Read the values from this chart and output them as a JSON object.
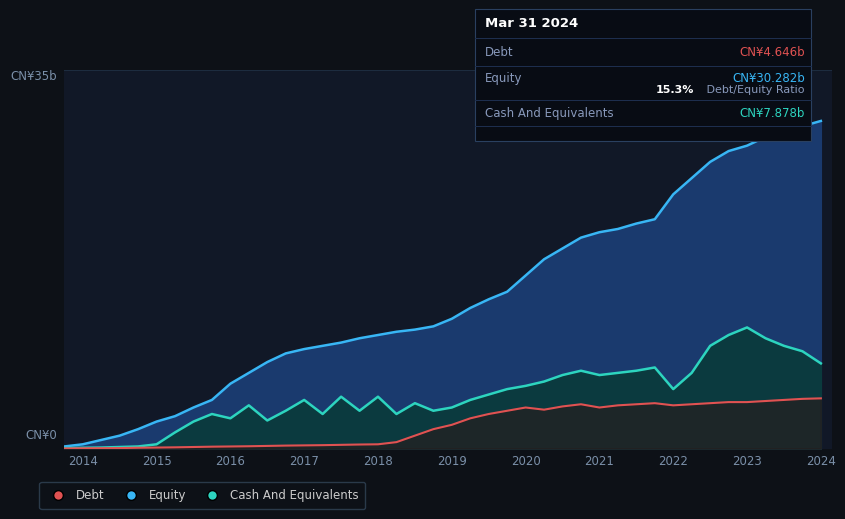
{
  "background_color": "#0d1117",
  "plot_bg_color": "#111827",
  "ylabel_top": "CN¥35b",
  "ylabel_bottom": "CN¥0",
  "x_ticks": [
    2014,
    2015,
    2016,
    2017,
    2018,
    2019,
    2020,
    2021,
    2022,
    2023,
    2024
  ],
  "ylim": [
    0,
    35
  ],
  "debt_color": "#e05252",
  "equity_color": "#38b6f5",
  "cash_color": "#2dd4bf",
  "equity_fill_color": "#1a3a6e",
  "cash_fill_color": "#0a3a3a",
  "debt_fill_color": "#2a1a1a",
  "grid_color": "#1e2d40",
  "tooltip": {
    "title": "Mar 31 2024",
    "debt_label": "Debt",
    "debt_value": "CN¥4.646b",
    "equity_label": "Equity",
    "equity_value": "CN¥30.282b",
    "ratio_bold": "15.3%",
    "ratio_text": " Debt/Equity Ratio",
    "cash_label": "Cash And Equivalents",
    "cash_value": "CN¥7.878b"
  },
  "years": [
    2013.75,
    2014.0,
    2014.25,
    2014.5,
    2014.75,
    2015.0,
    2015.25,
    2015.5,
    2015.75,
    2016.0,
    2016.25,
    2016.5,
    2016.75,
    2017.0,
    2017.25,
    2017.5,
    2017.75,
    2018.0,
    2018.25,
    2018.5,
    2018.75,
    2019.0,
    2019.25,
    2019.5,
    2019.75,
    2020.0,
    2020.25,
    2020.5,
    2020.75,
    2021.0,
    2021.25,
    2021.5,
    2021.75,
    2022.0,
    2022.25,
    2022.5,
    2022.75,
    2023.0,
    2023.25,
    2023.5,
    2023.75,
    2024.0
  ],
  "equity": [
    0.2,
    0.4,
    0.8,
    1.2,
    1.8,
    2.5,
    3.0,
    3.8,
    4.5,
    6.0,
    7.0,
    8.0,
    8.8,
    9.2,
    9.5,
    9.8,
    10.2,
    10.5,
    10.8,
    11.0,
    11.3,
    12.0,
    13.0,
    13.8,
    14.5,
    16.0,
    17.5,
    18.5,
    19.5,
    20.0,
    20.3,
    20.8,
    21.2,
    23.5,
    25.0,
    26.5,
    27.5,
    28.0,
    28.8,
    29.3,
    29.8,
    30.282
  ],
  "cash": [
    0.05,
    0.08,
    0.1,
    0.15,
    0.2,
    0.4,
    1.5,
    2.5,
    3.2,
    2.8,
    4.0,
    2.6,
    3.5,
    4.5,
    3.2,
    4.8,
    3.5,
    4.8,
    3.2,
    4.2,
    3.5,
    3.8,
    4.5,
    5.0,
    5.5,
    5.8,
    6.2,
    6.8,
    7.2,
    6.8,
    7.0,
    7.2,
    7.5,
    5.5,
    7.0,
    9.5,
    10.5,
    11.2,
    10.2,
    9.5,
    9.0,
    7.878
  ],
  "debt": [
    0.02,
    0.03,
    0.04,
    0.05,
    0.08,
    0.1,
    0.12,
    0.15,
    0.18,
    0.2,
    0.22,
    0.25,
    0.28,
    0.3,
    0.32,
    0.35,
    0.38,
    0.4,
    0.6,
    1.2,
    1.8,
    2.2,
    2.8,
    3.2,
    3.5,
    3.8,
    3.6,
    3.9,
    4.1,
    3.8,
    4.0,
    4.1,
    4.2,
    4.0,
    4.1,
    4.2,
    4.3,
    4.3,
    4.4,
    4.5,
    4.6,
    4.646
  ],
  "legend_labels": [
    "Debt",
    "Equity",
    "Cash And Equivalents"
  ],
  "legend_colors": [
    "#e05252",
    "#38b6f5",
    "#2dd4bf"
  ]
}
